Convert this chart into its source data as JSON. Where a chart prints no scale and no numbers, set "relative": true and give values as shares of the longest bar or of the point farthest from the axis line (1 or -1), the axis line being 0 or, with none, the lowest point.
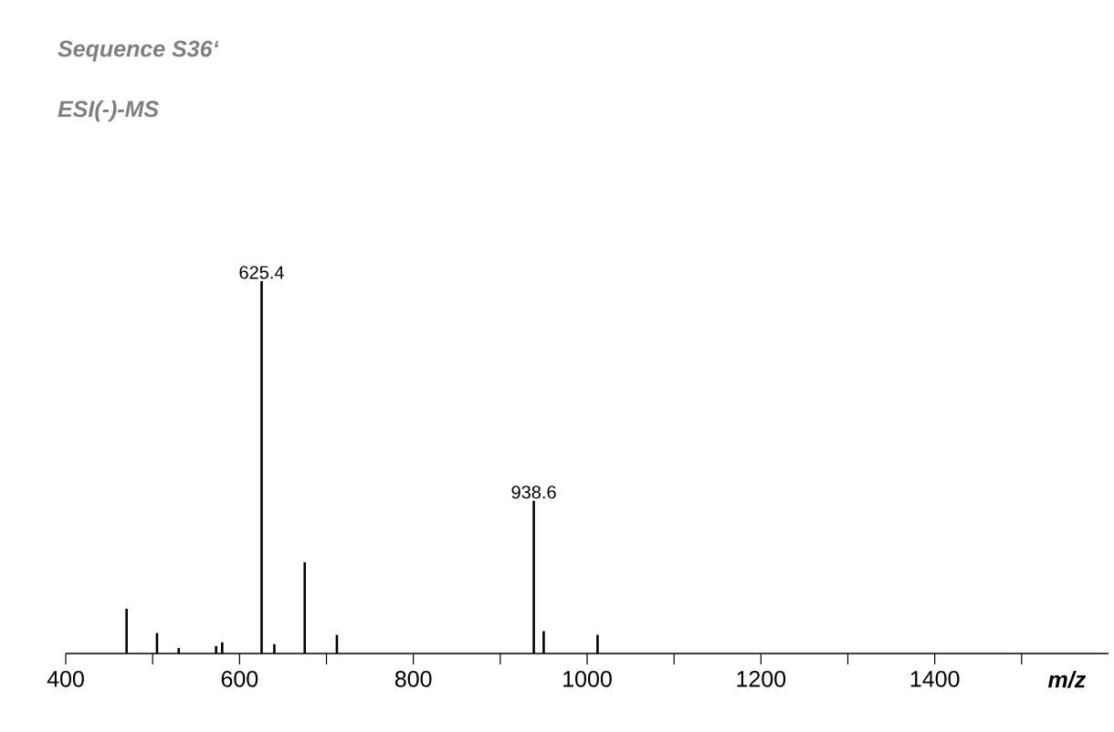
{
  "chart_data": {
    "type": "bar",
    "title": "Sequence **S36‘**",
    "subtitle": "ESI(-)-MS",
    "xlabel": "m/z",
    "x": [
      470,
      505,
      530,
      573,
      580,
      625.4,
      640,
      675,
      712,
      938.6,
      950,
      1012
    ],
    "values": [
      0.12,
      0.055,
      0.015,
      0.02,
      0.03,
      1,
      0.025,
      0.245,
      0.05,
      0.41,
      0.06,
      0.05
    ],
    "color": "#000000",
    "relative": true,
    "xlim": [
      400,
      1600
    ],
    "xticks": [
      400,
      {
        "value": 500,
        "label": null
      },
      600,
      {
        "value": 700,
        "label": null
      },
      800,
      {
        "value": 900,
        "label": null
      },
      1000,
      {
        "value": 1100,
        "label": null
      },
      1200,
      {
        "value": 1300,
        "label": null
      },
      1400,
      {
        "value": 1500,
        "label": null
      }
    ],
    "annotations": [
      {
        "text": "625.4",
        "x": 625.4,
        "y": 1
      },
      {
        "text": "938.6",
        "x": 938.6,
        "y": 0.41
      }
    ]
  }
}
